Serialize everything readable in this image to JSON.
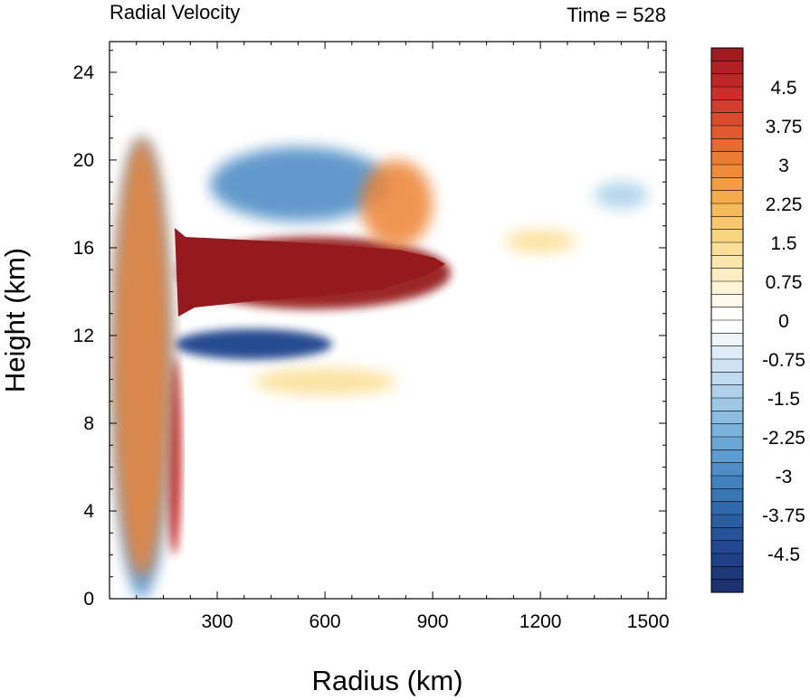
{
  "chart_data": {
    "type": "heatmap",
    "title": "Radial Velocity",
    "right_title": "Time = 528",
    "xlabel": "Radius (km)",
    "ylabel": "Height (km)",
    "xlim": [
      0,
      1550
    ],
    "ylim": [
      0,
      25.4
    ],
    "x_ticks": [
      300,
      600,
      900,
      1200,
      1500
    ],
    "y_ticks": [
      0,
      4,
      8,
      12,
      16,
      20,
      24
    ],
    "colorbar": {
      "labels": [
        "4.5",
        "3.75",
        "3",
        "2.25",
        "1.5",
        "0.75",
        "0",
        "-0.75",
        "-1.5",
        "-2.25",
        "-3",
        "-3.75",
        "-4.5"
      ],
      "levels": [
        4.5,
        3.75,
        3,
        2.25,
        1.5,
        0.75,
        0,
        -0.75,
        -1.5,
        -2.25,
        -3,
        -3.75,
        -4.5
      ],
      "min": -5.25,
      "max": 5.25,
      "step": 0.25
    },
    "features": [
      {
        "x": [
          190,
          950
        ],
        "y": [
          13.2,
          16.5
        ],
        "value": 5.25
      },
      {
        "x": [
          180,
          620
        ],
        "y": [
          10.9,
          12.3
        ],
        "value": -4.5
      },
      {
        "x": [
          160,
          200
        ],
        "y": [
          2,
          11
        ],
        "value": 4.5
      },
      {
        "x": [
          280,
          780
        ],
        "y": [
          17.2,
          20.6
        ],
        "value": -3
      },
      {
        "x": [
          700,
          900
        ],
        "y": [
          16,
          20
        ],
        "value": 3
      },
      {
        "x": [
          1100,
          1300
        ],
        "y": [
          15.8,
          16.8
        ],
        "value": 1.5
      },
      {
        "x": [
          1350,
          1500
        ],
        "y": [
          17.8,
          19
        ],
        "value": -1.5
      },
      {
        "x": [
          400,
          800
        ],
        "y": [
          9.3,
          10.5
        ],
        "value": 1.5
      },
      {
        "x": [
          10,
          170
        ],
        "y": [
          0,
          21
        ],
        "value": -3
      },
      {
        "x": [
          10,
          170
        ],
        "y": [
          1,
          21
        ],
        "value": 3
      }
    ]
  }
}
